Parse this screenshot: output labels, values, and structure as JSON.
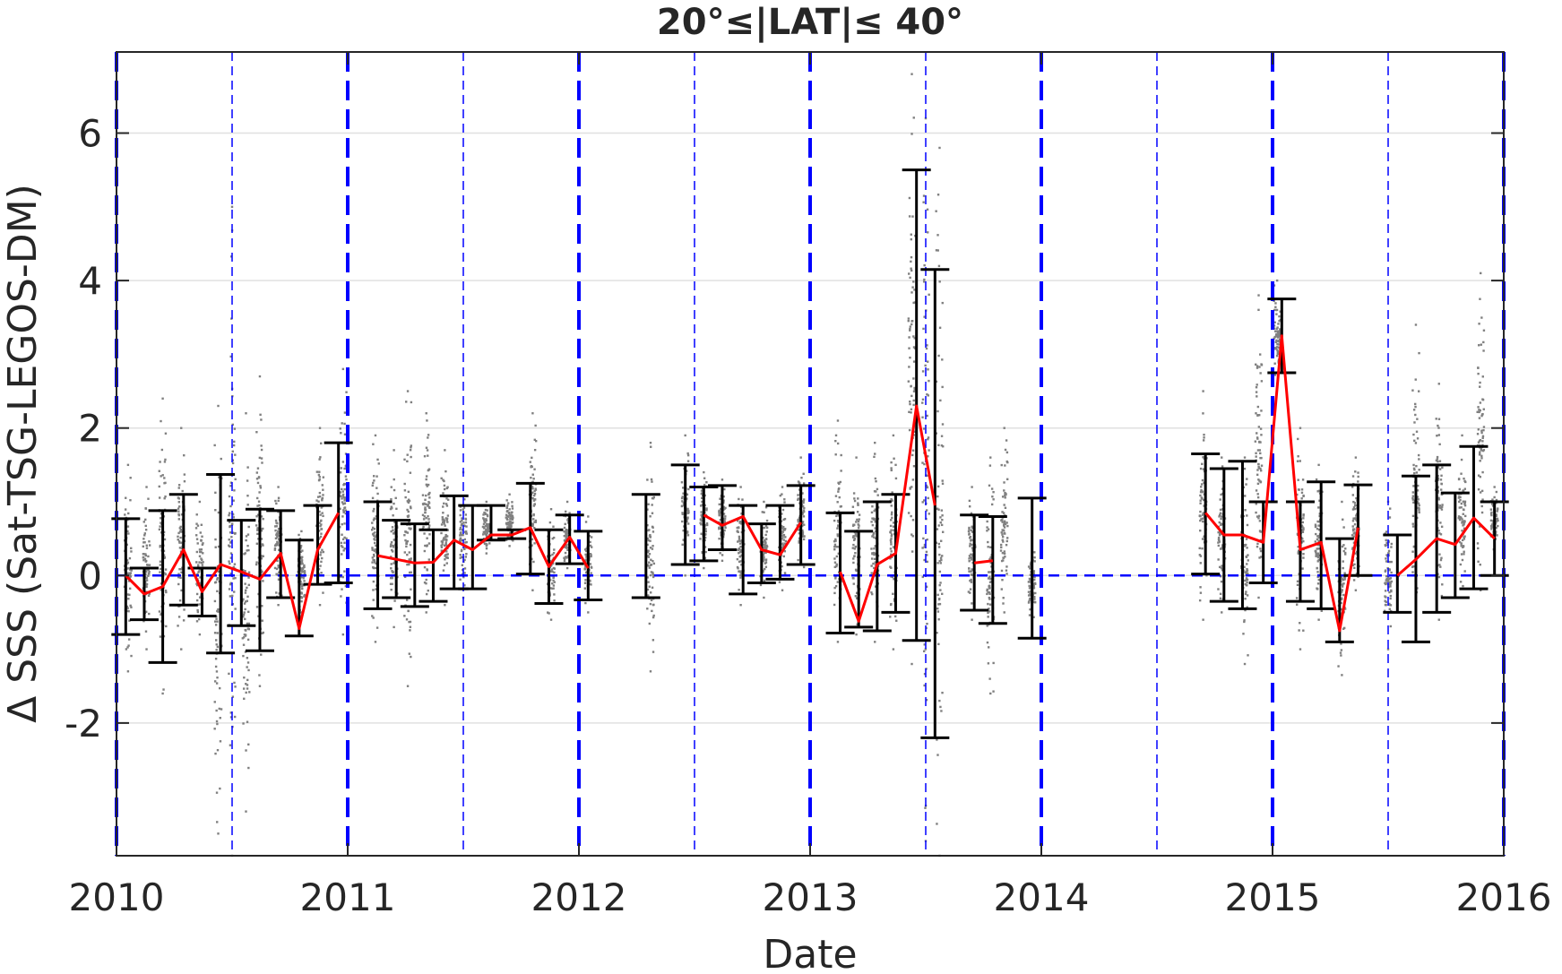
{
  "chart_data": {
    "type": "line",
    "title": "20°≤|LAT|≤ 40°",
    "xlabel": "Date",
    "ylabel": "Δ SSS (Sat-TSG-LEGOS-DM)",
    "xlim": [
      2010.0,
      2016.0
    ],
    "ylim": [
      -3.8,
      7.1
    ],
    "x_ticks": [
      2010,
      2011,
      2012,
      2013,
      2014,
      2015,
      2016
    ],
    "x_tick_labels": [
      "2010",
      "2011",
      "2012",
      "2013",
      "2014",
      "2015",
      "2016"
    ],
    "y_ticks": [
      -2,
      0,
      2,
      4,
      6
    ],
    "y_tick_labels": [
      "-2",
      "0",
      "2",
      "4",
      "6"
    ],
    "grid": "horizontal",
    "reference_line": {
      "y": 0,
      "style": "dashed",
      "color": "#0000ff"
    },
    "year_lines": [
      2010,
      2011,
      2012,
      2013,
      2014,
      2015,
      2016
    ],
    "half_year_lines": [
      2010.5,
      2011.5,
      2012.5,
      2013.5,
      2014.5,
      2015.5
    ],
    "colors": {
      "mean_line": "#ff0000",
      "error_bar": "#000000",
      "scatter": "#808080",
      "guides": "#0000ff"
    },
    "series": [
      {
        "type": "line",
        "segments": [
          {
            "x": [
              2010.04,
              2010.12,
              2010.2,
              2010.29,
              2010.37,
              2010.45,
              2010.54,
              2010.62,
              2010.71,
              2010.79,
              2010.87,
              2010.96
            ],
            "y": [
              0.0,
              -0.25,
              -0.15,
              0.35,
              -0.22,
              0.15,
              0.05,
              -0.05,
              0.3,
              -0.72,
              0.35,
              0.85
            ]
          },
          {
            "x": [
              2011.13,
              2011.21,
              2011.29,
              2011.37,
              2011.46,
              2011.54,
              2011.62,
              2011.71,
              2011.79,
              2011.87,
              2011.96,
              2012.04
            ],
            "y": [
              0.27,
              0.22,
              0.17,
              0.18,
              0.48,
              0.35,
              0.55,
              0.55,
              0.65,
              0.12,
              0.52,
              0.1
            ]
          },
          {
            "x": [
              2012.54,
              2012.62,
              2012.71,
              2012.79,
              2012.87,
              2012.96
            ],
            "y": [
              0.82,
              0.68,
              0.8,
              0.35,
              0.28,
              0.72
            ]
          },
          {
            "x": [
              2013.13,
              2013.21,
              2013.29,
              2013.37,
              2013.46,
              2013.54
            ],
            "y": [
              0.05,
              -0.62,
              0.15,
              0.3,
              2.3,
              0.95
            ]
          },
          {
            "x": [
              2013.71,
              2013.79
            ],
            "y": [
              0.17,
              0.2
            ]
          },
          {
            "x": [
              2014.71,
              2014.79,
              2014.87,
              2014.96,
              2015.04,
              2015.12,
              2015.21,
              2015.29,
              2015.37
            ],
            "y": [
              0.85,
              0.55,
              0.55,
              0.45,
              3.25,
              0.35,
              0.45,
              -0.75,
              0.65
            ]
          },
          {
            "x": [
              2015.54,
              2015.62,
              2015.71,
              2015.79,
              2015.87,
              2015.96
            ],
            "y": [
              0.0,
              0.22,
              0.5,
              0.42,
              0.78,
              0.5
            ]
          }
        ]
      },
      {
        "type": "errorbar",
        "x": [
          2010.04,
          2010.12,
          2010.2,
          2010.29,
          2010.37,
          2010.45,
          2010.54,
          2010.62,
          2010.71,
          2010.79,
          2010.87,
          2010.96,
          2011.13,
          2011.21,
          2011.29,
          2011.37,
          2011.46,
          2011.54,
          2011.62,
          2011.71,
          2011.79,
          2011.87,
          2011.96,
          2012.04,
          2012.29,
          2012.46,
          2012.54,
          2012.62,
          2012.71,
          2012.79,
          2012.87,
          2012.96,
          2013.13,
          2013.21,
          2013.29,
          2013.37,
          2013.46,
          2013.54,
          2013.71,
          2013.79,
          2013.96,
          2014.71,
          2014.79,
          2014.87,
          2014.96,
          2015.04,
          2015.12,
          2015.21,
          2015.29,
          2015.37,
          2015.54,
          2015.62,
          2015.71,
          2015.79,
          2015.87,
          2015.96
        ],
        "low": [
          -0.8,
          -0.6,
          -1.18,
          -0.4,
          -0.55,
          -1.05,
          -0.68,
          -1.02,
          -0.3,
          -0.82,
          -0.12,
          -0.1,
          -0.45,
          -0.3,
          -0.42,
          -0.35,
          -0.18,
          -0.18,
          0.48,
          0.5,
          0.02,
          -0.38,
          0.16,
          -0.33,
          -0.3,
          0.15,
          0.2,
          0.35,
          -0.25,
          -0.1,
          -0.05,
          0.15,
          -0.78,
          -0.7,
          -0.75,
          -0.5,
          -0.88,
          -2.2,
          -0.47,
          -0.65,
          -0.85,
          0.02,
          -0.35,
          -0.45,
          -0.1,
          2.75,
          -0.35,
          -0.45,
          -0.9,
          0.0,
          -0.5,
          -0.9,
          -0.5,
          -0.3,
          -0.18,
          0.0
        ],
        "high": [
          0.77,
          0.1,
          0.88,
          1.1,
          0.1,
          1.37,
          0.75,
          0.9,
          0.88,
          0.48,
          0.95,
          1.8,
          1.0,
          0.75,
          0.7,
          0.62,
          1.08,
          0.95,
          0.95,
          0.62,
          1.25,
          0.62,
          0.82,
          0.6,
          1.1,
          1.5,
          1.2,
          1.22,
          0.95,
          0.7,
          0.95,
          1.22,
          0.85,
          0.6,
          1.0,
          1.1,
          5.5,
          4.15,
          0.82,
          0.8,
          1.05,
          1.65,
          1.45,
          1.55,
          1.0,
          3.75,
          1.0,
          1.27,
          0.5,
          1.23,
          0.55,
          1.35,
          1.5,
          1.12,
          1.75,
          1.0
        ]
      },
      {
        "type": "scatter",
        "columns": [
          {
            "x": 2010.05,
            "y": [
              -1.3,
              1.5
            ]
          },
          {
            "x": 2010.13,
            "y": [
              -1.0,
              1.2
            ]
          },
          {
            "x": 2010.2,
            "y": [
              -1.6,
              2.4
            ]
          },
          {
            "x": 2010.28,
            "y": [
              -1.0,
              2.0
            ]
          },
          {
            "x": 2010.36,
            "y": [
              -0.8,
              1.0
            ]
          },
          {
            "x": 2010.44,
            "y": [
              -3.5,
              2.3
            ]
          },
          {
            "x": 2010.5,
            "y": [
              -3.8,
              5.0
            ]
          },
          {
            "x": 2010.56,
            "y": [
              -3.2,
              2.2
            ]
          },
          {
            "x": 2010.62,
            "y": [
              -1.5,
              2.7
            ]
          },
          {
            "x": 2010.7,
            "y": [
              -0.4,
              1.2
            ]
          },
          {
            "x": 2010.8,
            "y": [
              -0.5,
              0.6
            ]
          },
          {
            "x": 2010.88,
            "y": [
              -0.4,
              2.0
            ]
          },
          {
            "x": 2010.98,
            "y": [
              -0.8,
              2.8
            ]
          },
          {
            "x": 2011.12,
            "y": [
              -0.9,
              1.9
            ]
          },
          {
            "x": 2011.2,
            "y": [
              -0.7,
              1.7
            ]
          },
          {
            "x": 2011.26,
            "y": [
              -1.5,
              2.5
            ]
          },
          {
            "x": 2011.34,
            "y": [
              -0.5,
              2.2
            ]
          },
          {
            "x": 2011.42,
            "y": [
              -0.4,
              1.7
            ]
          },
          {
            "x": 2011.5,
            "y": [
              -0.3,
              1.4
            ]
          },
          {
            "x": 2011.6,
            "y": [
              0.3,
              1.0
            ]
          },
          {
            "x": 2011.7,
            "y": [
              0.4,
              1.1
            ]
          },
          {
            "x": 2011.8,
            "y": [
              -0.2,
              2.2
            ]
          },
          {
            "x": 2011.88,
            "y": [
              -0.6,
              0.9
            ]
          },
          {
            "x": 2011.95,
            "y": [
              0.1,
              1.0
            ]
          },
          {
            "x": 2012.04,
            "y": [
              -0.5,
              0.8
            ]
          },
          {
            "x": 2012.31,
            "y": [
              -1.3,
              1.8
            ]
          },
          {
            "x": 2012.46,
            "y": [
              0.0,
              1.9
            ]
          },
          {
            "x": 2012.54,
            "y": [
              0.1,
              1.4
            ]
          },
          {
            "x": 2012.62,
            "y": [
              0.2,
              1.3
            ]
          },
          {
            "x": 2012.7,
            "y": [
              -0.4,
              1.2
            ]
          },
          {
            "x": 2012.8,
            "y": [
              -0.3,
              1.0
            ]
          },
          {
            "x": 2012.88,
            "y": [
              -0.2,
              1.2
            ]
          },
          {
            "x": 2012.96,
            "y": [
              0.0,
              1.6
            ]
          },
          {
            "x": 2013.12,
            "y": [
              -0.9,
              2.1
            ]
          },
          {
            "x": 2013.2,
            "y": [
              -0.8,
              1.6
            ]
          },
          {
            "x": 2013.28,
            "y": [
              -0.9,
              1.8
            ]
          },
          {
            "x": 2013.36,
            "y": [
              -1.0,
              1.9
            ]
          },
          {
            "x": 2013.44,
            "y": [
              -1.2,
              6.8
            ]
          },
          {
            "x": 2013.5,
            "y": [
              -3.6,
              6.2
            ]
          },
          {
            "x": 2013.56,
            "y": [
              -3.8,
              5.8
            ]
          },
          {
            "x": 2013.7,
            "y": [
              -0.6,
              1.2
            ]
          },
          {
            "x": 2013.78,
            "y": [
              -1.6,
              1.6
            ]
          },
          {
            "x": 2013.84,
            "y": [
              -0.5,
              2.0
            ]
          },
          {
            "x": 2013.96,
            "y": [
              -0.8,
              0.5
            ]
          },
          {
            "x": 2014.7,
            "y": [
              -0.6,
              2.5
            ]
          },
          {
            "x": 2014.78,
            "y": [
              -0.5,
              1.6
            ]
          },
          {
            "x": 2014.88,
            "y": [
              -1.2,
              1.6
            ]
          },
          {
            "x": 2014.94,
            "y": [
              -0.3,
              3.8
            ]
          },
          {
            "x": 2015.02,
            "y": [
              2.6,
              4.0
            ]
          },
          {
            "x": 2015.12,
            "y": [
              -1.0,
              2.0
            ]
          },
          {
            "x": 2015.2,
            "y": [
              -0.6,
              1.5
            ]
          },
          {
            "x": 2015.3,
            "y": [
              -1.35,
              1.0
            ]
          },
          {
            "x": 2015.36,
            "y": [
              -0.2,
              1.6
            ]
          },
          {
            "x": 2015.5,
            "y": [
              -1.0,
              1.0
            ]
          },
          {
            "x": 2015.62,
            "y": [
              -0.7,
              3.4
            ]
          },
          {
            "x": 2015.72,
            "y": [
              -0.6,
              2.6
            ]
          },
          {
            "x": 2015.82,
            "y": [
              -0.3,
              1.9
            ]
          },
          {
            "x": 2015.9,
            "y": [
              -0.2,
              4.1
            ]
          },
          {
            "x": 2015.96,
            "y": [
              0.3,
              1.2
            ]
          }
        ]
      }
    ]
  }
}
